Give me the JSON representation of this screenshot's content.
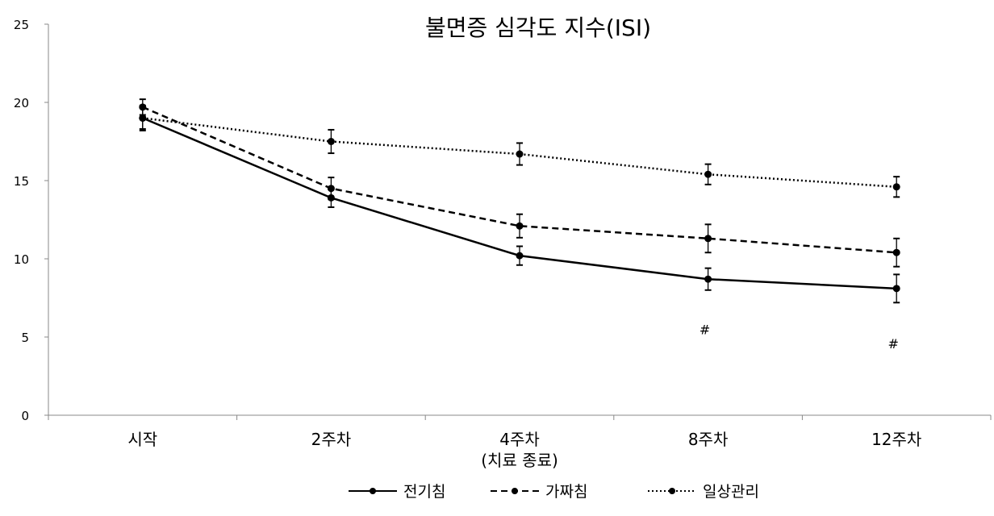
{
  "chart_data": {
    "type": "line",
    "title": "불면증 심각도 지수(ISI)",
    "categories": [
      "시작",
      "2주차",
      "4주차",
      "8주차",
      "12주차"
    ],
    "category_sublabels": [
      "",
      "",
      "(치료 종료)",
      "",
      ""
    ],
    "ylim": [
      0,
      25
    ],
    "yticks": [
      0,
      5,
      10,
      15,
      20,
      25
    ],
    "grid": false,
    "legend_position": "bottom",
    "series": [
      {
        "name": "전기침",
        "style": "solid",
        "values": [
          19.0,
          13.9,
          10.2,
          8.7,
          8.1
        ],
        "errors": [
          0.7,
          0.6,
          0.6,
          0.7,
          0.9
        ]
      },
      {
        "name": "가짜침",
        "style": "dashed",
        "values": [
          19.7,
          14.5,
          12.1,
          11.3,
          10.4
        ],
        "errors": [
          0.5,
          0.7,
          0.75,
          0.9,
          0.9
        ]
      },
      {
        "name": "일상관리",
        "style": "dotted",
        "values": [
          19.0,
          17.5,
          16.7,
          15.4,
          14.6
        ],
        "errors": [
          0.8,
          0.75,
          0.7,
          0.65,
          0.65
        ]
      }
    ],
    "annotations": [
      {
        "category": "8주차",
        "text": "#",
        "y": 5.5
      },
      {
        "category": "12주차",
        "text": "#",
        "y": 4.6
      }
    ]
  }
}
